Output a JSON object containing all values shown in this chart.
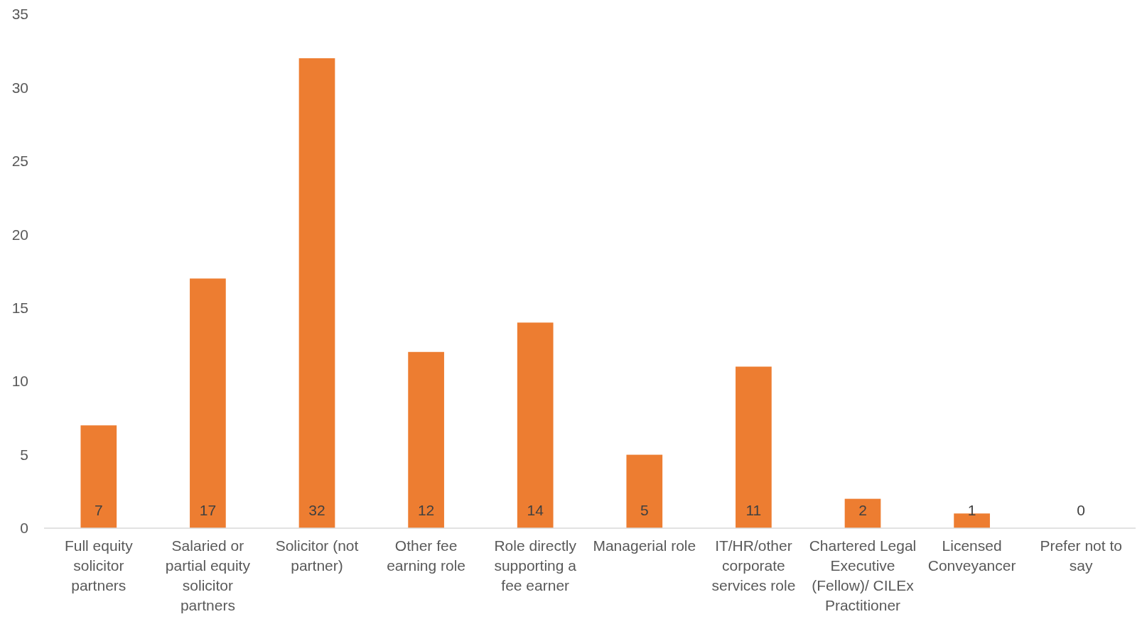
{
  "chart_data": {
    "type": "bar",
    "categories": [
      "Full equity solicitor partners",
      "Salaried or partial equity solicitor partners",
      "Solicitor (not partner)",
      "Other fee earning role",
      "Role directly supporting a fee earner",
      "Managerial role",
      "IT/HR/other corporate services role",
      "Chartered Legal Executive (Fellow)/ CILEx Practitioner",
      "Licensed Conveyancer",
      "Prefer not to say"
    ],
    "values": [
      7,
      17,
      32,
      12,
      14,
      5,
      11,
      2,
      1,
      0
    ],
    "color": "#ed7d31",
    "ylim": [
      0,
      35
    ],
    "yticks": [
      0,
      5,
      10,
      15,
      20,
      25,
      30,
      35
    ],
    "data_labels": true
  }
}
